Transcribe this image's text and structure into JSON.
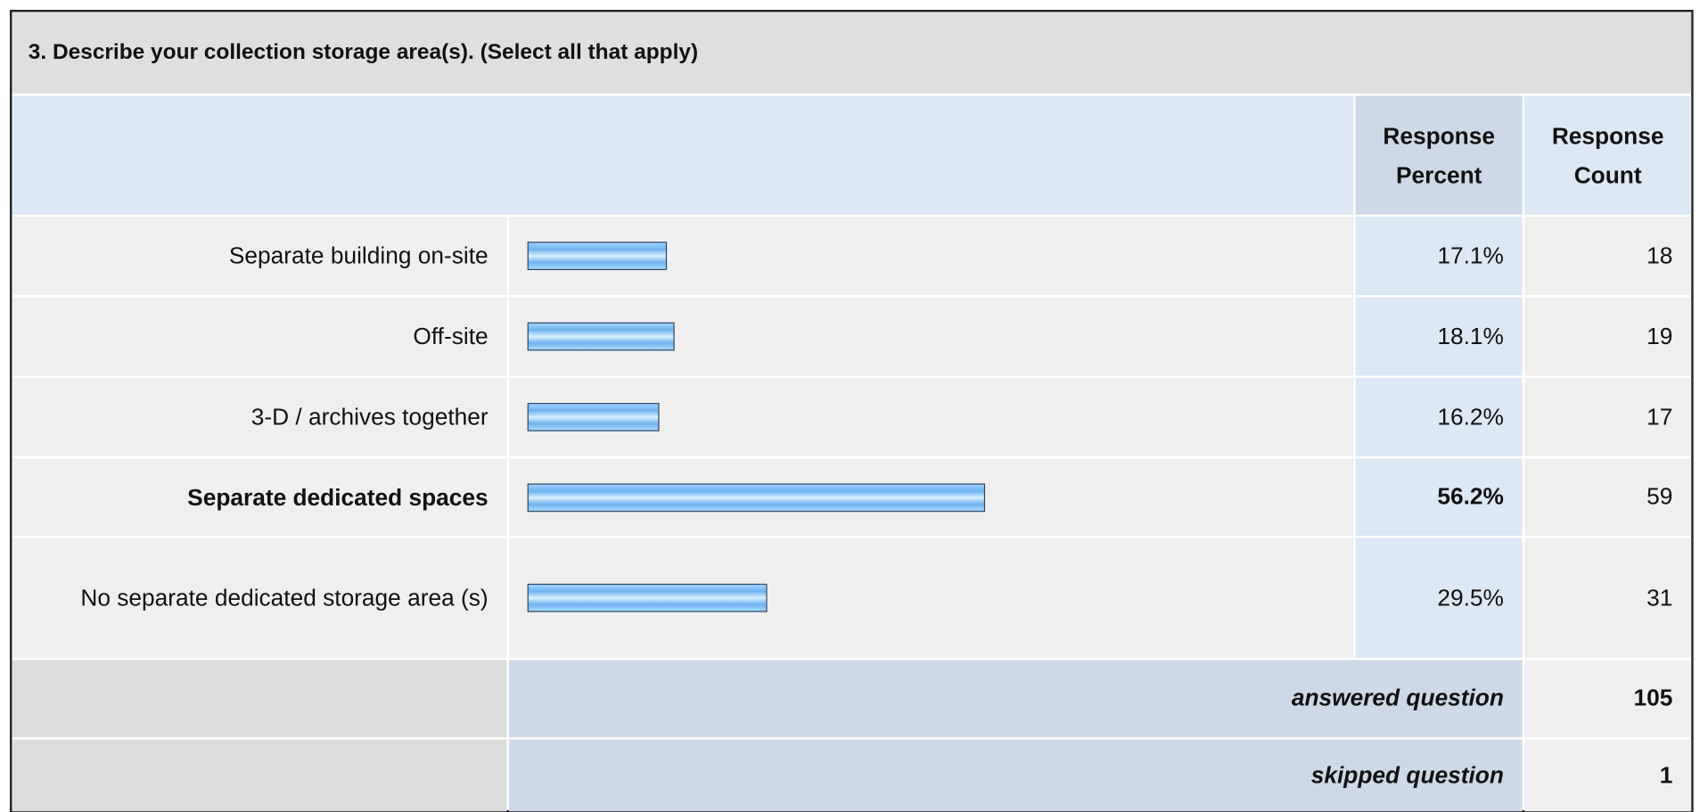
{
  "title": "3. Describe your collection storage area(s). (Select all that apply)",
  "columns": [
    "Response Percent",
    "Response Count"
  ],
  "rows": [
    {
      "label": "Separate building on-site",
      "percent": 17.1,
      "percent_label": "17.1%",
      "count": 18
    },
    {
      "label": "Off-site",
      "percent": 18.1,
      "percent_label": "18.1%",
      "count": 19
    },
    {
      "label": "3-D / archives together",
      "percent": 16.2,
      "percent_label": "16.2%",
      "count": 17
    },
    {
      "label": "Separate dedicated spaces",
      "percent": 56.2,
      "percent_label": "56.2%",
      "count": 59,
      "bold": true
    },
    {
      "label": "No separate dedicated storage area (s)",
      "percent": 29.5,
      "percent_label": "29.5%",
      "count": 31
    }
  ],
  "footer": [
    {
      "label": "answered question",
      "value": 105
    },
    {
      "label": "skipped question",
      "value": 1
    }
  ]
}
